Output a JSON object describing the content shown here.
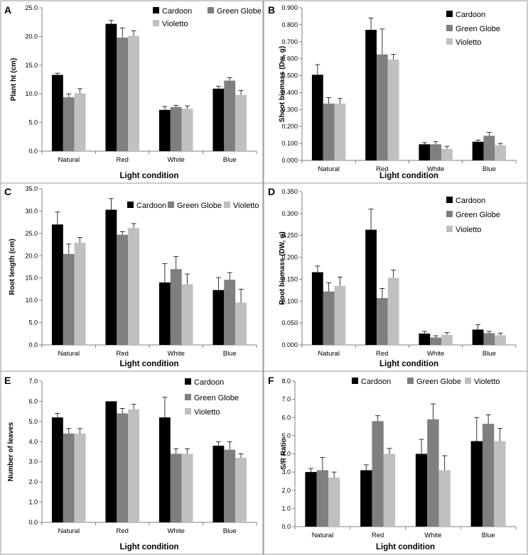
{
  "colors": {
    "Cardoon": "#000000",
    "Green Globe": "#7f7f7f",
    "Violetto": "#c0c0c0"
  },
  "chart_data": [
    {
      "type": "bar",
      "panel": "A",
      "categories": [
        "Natural",
        "Red",
        "White",
        "Blue"
      ],
      "series": [
        {
          "name": "Cardoon",
          "values": [
            13.3,
            22.2,
            7.2,
            10.9
          ],
          "errors": [
            0.3,
            0.6,
            0.6,
            0.4
          ]
        },
        {
          "name": "Green Globe",
          "values": [
            9.4,
            19.8,
            7.7,
            12.3
          ],
          "errors": [
            0.6,
            1.7,
            0.3,
            0.5
          ]
        },
        {
          "name": "Violetto",
          "values": [
            10.1,
            20.1,
            7.4,
            9.8
          ],
          "errors": [
            0.8,
            0.9,
            0.5,
            0.8
          ]
        }
      ],
      "xlabel": "Light condition",
      "ylabel": "Plant ht (cm)",
      "ylim": [
        0,
        25
      ],
      "yticks": [
        "0.0",
        "5.0",
        "10.0",
        "15.0",
        "20.0",
        "25.0"
      ],
      "legend": "top-right, two columns"
    },
    {
      "type": "bar",
      "panel": "B",
      "categories": [
        "Natural",
        "Red",
        "White",
        "Blue"
      ],
      "series": [
        {
          "name": "Cardoon",
          "values": [
            0.505,
            0.77,
            0.095,
            0.11
          ],
          "errors": [
            0.06,
            0.07,
            0.01,
            0.01
          ]
        },
        {
          "name": "Green Globe",
          "values": [
            0.335,
            0.625,
            0.095,
            0.145
          ],
          "errors": [
            0.035,
            0.15,
            0.015,
            0.02
          ]
        },
        {
          "name": "Violetto",
          "values": [
            0.335,
            0.595,
            0.068,
            0.09
          ],
          "errors": [
            0.03,
            0.03,
            0.015,
            0.01
          ]
        }
      ],
      "xlabel": "Light condition",
      "ylabel": "Shoot biomass (Dw, g)",
      "ylim": [
        0,
        0.9
      ],
      "yticks": [
        "0.000",
        "0.100",
        "0.200",
        "0.300",
        "0.400",
        "0.500",
        "0.600",
        "0.700",
        "0.800",
        "0.900"
      ],
      "legend": "top-right, stacked"
    },
    {
      "type": "bar",
      "panel": "C",
      "categories": [
        "Natural",
        "Red",
        "White",
        "Blue"
      ],
      "series": [
        {
          "name": "Cardoon",
          "values": [
            27.0,
            30.3,
            14.0,
            12.3
          ],
          "errors": [
            2.8,
            2.5,
            4.2,
            2.8
          ]
        },
        {
          "name": "Green Globe",
          "values": [
            20.4,
            24.7,
            17.0,
            14.6
          ],
          "errors": [
            2.2,
            0.7,
            2.8,
            1.6
          ]
        },
        {
          "name": "Violetto",
          "values": [
            22.9,
            26.2,
            13.6,
            9.5
          ],
          "errors": [
            1.2,
            1.0,
            2.3,
            3.0
          ]
        }
      ],
      "xlabel": "Light condition",
      "ylabel": "Root length (cm)",
      "ylim": [
        0,
        35
      ],
      "yticks": [
        "0.0",
        "5.0",
        "10.0",
        "15.0",
        "20.0",
        "25.0",
        "30.0",
        "35.0"
      ],
      "legend": "top-right, one row"
    },
    {
      "type": "bar",
      "panel": "D",
      "categories": [
        "Natural",
        "Red",
        "White",
        "Blue"
      ],
      "series": [
        {
          "name": "Cardoon",
          "values": [
            0.166,
            0.263,
            0.026,
            0.035
          ],
          "errors": [
            0.014,
            0.047,
            0.005,
            0.011
          ]
        },
        {
          "name": "Green Globe",
          "values": [
            0.122,
            0.107,
            0.017,
            0.027
          ],
          "errors": [
            0.02,
            0.022,
            0.004,
            0.004
          ]
        },
        {
          "name": "Violetto",
          "values": [
            0.135,
            0.153,
            0.023,
            0.022
          ],
          "errors": [
            0.02,
            0.018,
            0.005,
            0.005
          ]
        }
      ],
      "xlabel": "Light condition",
      "ylabel": "Root biomass (DW, g)",
      "ylim": [
        0,
        0.35
      ],
      "yticks": [
        "0.000",
        "0.050",
        "0.100",
        "0.150",
        "0.200",
        "0.250",
        "0.300",
        "0.350"
      ],
      "legend": "top-right, stacked"
    },
    {
      "type": "bar",
      "panel": "E",
      "categories": [
        "Natural",
        "Red",
        "White",
        "Blue"
      ],
      "series": [
        {
          "name": "Cardoon",
          "values": [
            5.2,
            6.0,
            5.2,
            3.8
          ],
          "errors": [
            0.2,
            0.0,
            1.0,
            0.2
          ]
        },
        {
          "name": "Green Globe",
          "values": [
            4.4,
            5.4,
            3.4,
            3.6
          ],
          "errors": [
            0.25,
            0.25,
            0.25,
            0.4
          ]
        },
        {
          "name": "Violetto",
          "values": [
            4.4,
            5.6,
            3.4,
            3.2
          ],
          "errors": [
            0.25,
            0.25,
            0.25,
            0.2
          ]
        }
      ],
      "xlabel": "Light condition",
      "ylabel": "Number of leaves",
      "ylim": [
        0,
        7
      ],
      "yticks": [
        "0.0",
        "1.0",
        "2.0",
        "3.0",
        "4.0",
        "5.0",
        "6.0",
        "7.0"
      ],
      "legend": "top-right, stacked"
    },
    {
      "type": "bar",
      "panel": "F",
      "categories": [
        "Natural",
        "Red",
        "White",
        "Blue"
      ],
      "series": [
        {
          "name": "Cardoon",
          "values": [
            3.0,
            3.1,
            4.0,
            4.7
          ],
          "errors": [
            0.2,
            0.3,
            0.8,
            1.3
          ]
        },
        {
          "name": "Green Globe",
          "values": [
            3.1,
            5.8,
            5.9,
            5.65
          ],
          "errors": [
            0.7,
            0.3,
            0.85,
            0.5
          ]
        },
        {
          "name": "Violetto",
          "values": [
            2.7,
            4.0,
            3.1,
            4.7
          ],
          "errors": [
            0.3,
            0.3,
            0.8,
            0.7
          ]
        }
      ],
      "xlabel": "Light condition",
      "ylabel": "S/R Ratio",
      "ylim": [
        0,
        8
      ],
      "yticks": [
        "0.0",
        "1.0",
        "2.0",
        "3.0",
        "4.0",
        "5.0",
        "6.0",
        "7.0",
        "8.0"
      ],
      "legend": "top, one row"
    }
  ]
}
